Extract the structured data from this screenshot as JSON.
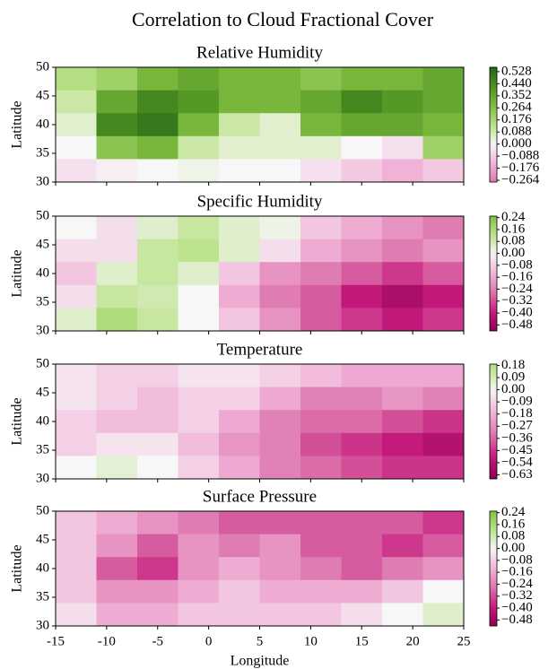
{
  "title": "Correlation to Cloud Fractional Cover",
  "chart_data": [
    {
      "type": "heatmap",
      "title": "Relative Humidity",
      "ylabel": "Latitude",
      "xlim": [
        -15,
        25
      ],
      "ylim": [
        30,
        50
      ],
      "xticks": [
        -15,
        -10,
        -5,
        0,
        5,
        10,
        15,
        20,
        25
      ],
      "yticks": [
        30,
        35,
        40,
        45,
        50
      ],
      "clim": [
        -0.277,
        0.56
      ],
      "colorbar_ticks": [
        {
          "value": -0.264,
          "label": "−0.264"
        },
        {
          "value": -0.176,
          "label": "−0.176"
        },
        {
          "value": -0.088,
          "label": "−0.088"
        },
        {
          "value": 0,
          "label": "0.000"
        },
        0.088,
        0.176,
        0.264,
        0.352,
        {
          "value": 0.44,
          "label": "0.440"
        },
        0.528
      ],
      "values": [
        [
          0.15,
          0.2,
          0.3,
          0.35,
          0.3,
          0.3,
          0.25,
          0.3,
          0.3,
          0.35
        ],
        [
          0.1,
          0.35,
          0.45,
          0.4,
          0.3,
          0.3,
          0.35,
          0.45,
          0.4,
          0.35
        ],
        [
          0.05,
          0.45,
          0.5,
          0.3,
          0.1,
          0.05,
          0.3,
          0.35,
          0.35,
          0.3
        ],
        [
          0.0,
          0.25,
          0.3,
          0.1,
          0.05,
          0.05,
          0.05,
          0.0,
          -0.05,
          0.2
        ],
        [
          -0.05,
          -0.02,
          0.0,
          0.02,
          0.0,
          0.0,
          -0.05,
          -0.1,
          -0.15,
          -0.1
        ]
      ]
    },
    {
      "type": "heatmap",
      "title": "Specific Humidity",
      "ylabel": "Latitude",
      "xlim": [
        -15,
        25
      ],
      "ylim": [
        30,
        50
      ],
      "xticks": [
        -15,
        -10,
        -5,
        0,
        5,
        10,
        15,
        20,
        25
      ],
      "yticks": [
        30,
        35,
        40,
        45,
        50
      ],
      "clim": [
        -0.52,
        0.25
      ],
      "colorbar_ticks": [
        {
          "value": -0.48,
          "label": "−0.48"
        },
        {
          "value": -0.4,
          "label": "−0.40"
        },
        {
          "value": -0.32,
          "label": "−0.32"
        },
        {
          "value": -0.24,
          "label": "−0.24"
        },
        {
          "value": -0.16,
          "label": "−0.16"
        },
        {
          "value": -0.08,
          "label": "−0.08"
        },
        {
          "value": 0,
          "label": "0.00"
        },
        0.08,
        0.16,
        0.24
      ],
      "values": [
        [
          0.0,
          -0.05,
          0.05,
          0.1,
          0.05,
          0.02,
          -0.1,
          -0.15,
          -0.2,
          -0.25
        ],
        [
          -0.05,
          -0.05,
          0.1,
          0.12,
          0.05,
          -0.05,
          -0.15,
          -0.2,
          -0.25,
          -0.2
        ],
        [
          -0.1,
          0.05,
          0.1,
          0.05,
          -0.1,
          -0.2,
          -0.25,
          -0.3,
          -0.35,
          -0.3
        ],
        [
          -0.05,
          0.1,
          0.08,
          0.0,
          -0.15,
          -0.25,
          -0.3,
          -0.4,
          -0.45,
          -0.4
        ],
        [
          0.05,
          0.15,
          0.1,
          0.0,
          -0.1,
          -0.2,
          -0.3,
          -0.35,
          -0.4,
          -0.35
        ]
      ]
    },
    {
      "type": "heatmap",
      "title": "Temperature",
      "ylabel": "Latitude",
      "xlim": [
        -15,
        25
      ],
      "ylim": [
        30,
        50
      ],
      "xticks": [
        -15,
        -10,
        -5,
        0,
        5,
        10,
        15,
        20,
        25
      ],
      "yticks": [
        30,
        35,
        40,
        45,
        50
      ],
      "clim": [
        -0.66,
        0.19
      ],
      "colorbar_ticks": [
        {
          "value": -0.63,
          "label": "−0.63"
        },
        {
          "value": -0.54,
          "label": "−0.54"
        },
        {
          "value": -0.45,
          "label": "−0.45"
        },
        {
          "value": -0.36,
          "label": "−0.36"
        },
        {
          "value": -0.27,
          "label": "−0.27"
        },
        {
          "value": -0.18,
          "label": "−0.18"
        },
        {
          "value": -0.09,
          "label": "−0.09"
        },
        {
          "value": 0,
          "label": "0.00"
        },
        0.09,
        0.18
      ],
      "values": [
        [
          -0.05,
          -0.1,
          -0.1,
          -0.05,
          -0.05,
          -0.1,
          -0.15,
          -0.2,
          -0.2,
          -0.2
        ],
        [
          -0.05,
          -0.1,
          -0.15,
          -0.1,
          -0.1,
          -0.2,
          -0.3,
          -0.3,
          -0.25,
          -0.3
        ],
        [
          -0.1,
          -0.15,
          -0.15,
          -0.1,
          -0.2,
          -0.3,
          -0.35,
          -0.35,
          -0.4,
          -0.45
        ],
        [
          -0.1,
          -0.05,
          -0.05,
          -0.15,
          -0.25,
          -0.3,
          -0.4,
          -0.45,
          -0.5,
          -0.55
        ],
        [
          0.0,
          0.05,
          0.0,
          -0.1,
          -0.2,
          -0.3,
          -0.35,
          -0.4,
          -0.45,
          -0.45
        ]
      ]
    },
    {
      "type": "heatmap",
      "title": "Surface Pressure",
      "ylabel": "Latitude",
      "xlabel": "Longitude",
      "xlim": [
        -15,
        25
      ],
      "ylim": [
        30,
        50
      ],
      "xticks": [
        -15,
        -10,
        -5,
        0,
        5,
        10,
        15,
        20,
        25
      ],
      "yticks": [
        30,
        35,
        40,
        45,
        50
      ],
      "clim": [
        -0.52,
        0.25
      ],
      "colorbar_ticks": [
        {
          "value": -0.48,
          "label": "−0.48"
        },
        {
          "value": -0.4,
          "label": "−0.40"
        },
        {
          "value": -0.32,
          "label": "−0.32"
        },
        {
          "value": -0.24,
          "label": "−0.24"
        },
        {
          "value": -0.16,
          "label": "−0.16"
        },
        {
          "value": -0.08,
          "label": "−0.08"
        },
        {
          "value": 0,
          "label": "0.00"
        },
        0.08,
        0.16,
        0.24
      ],
      "values": [
        [
          -0.1,
          -0.15,
          -0.2,
          -0.25,
          -0.3,
          -0.3,
          -0.3,
          -0.3,
          -0.3,
          -0.35
        ],
        [
          -0.1,
          -0.2,
          -0.3,
          -0.2,
          -0.25,
          -0.2,
          -0.3,
          -0.3,
          -0.35,
          -0.3
        ],
        [
          -0.1,
          -0.3,
          -0.35,
          -0.2,
          -0.15,
          -0.2,
          -0.25,
          -0.3,
          -0.25,
          -0.2
        ],
        [
          -0.1,
          -0.2,
          -0.2,
          -0.15,
          -0.1,
          -0.15,
          -0.15,
          -0.15,
          -0.1,
          0.0
        ],
        [
          -0.05,
          -0.15,
          -0.15,
          -0.1,
          -0.1,
          -0.1,
          -0.1,
          -0.05,
          0.0,
          0.05
        ]
      ]
    }
  ]
}
